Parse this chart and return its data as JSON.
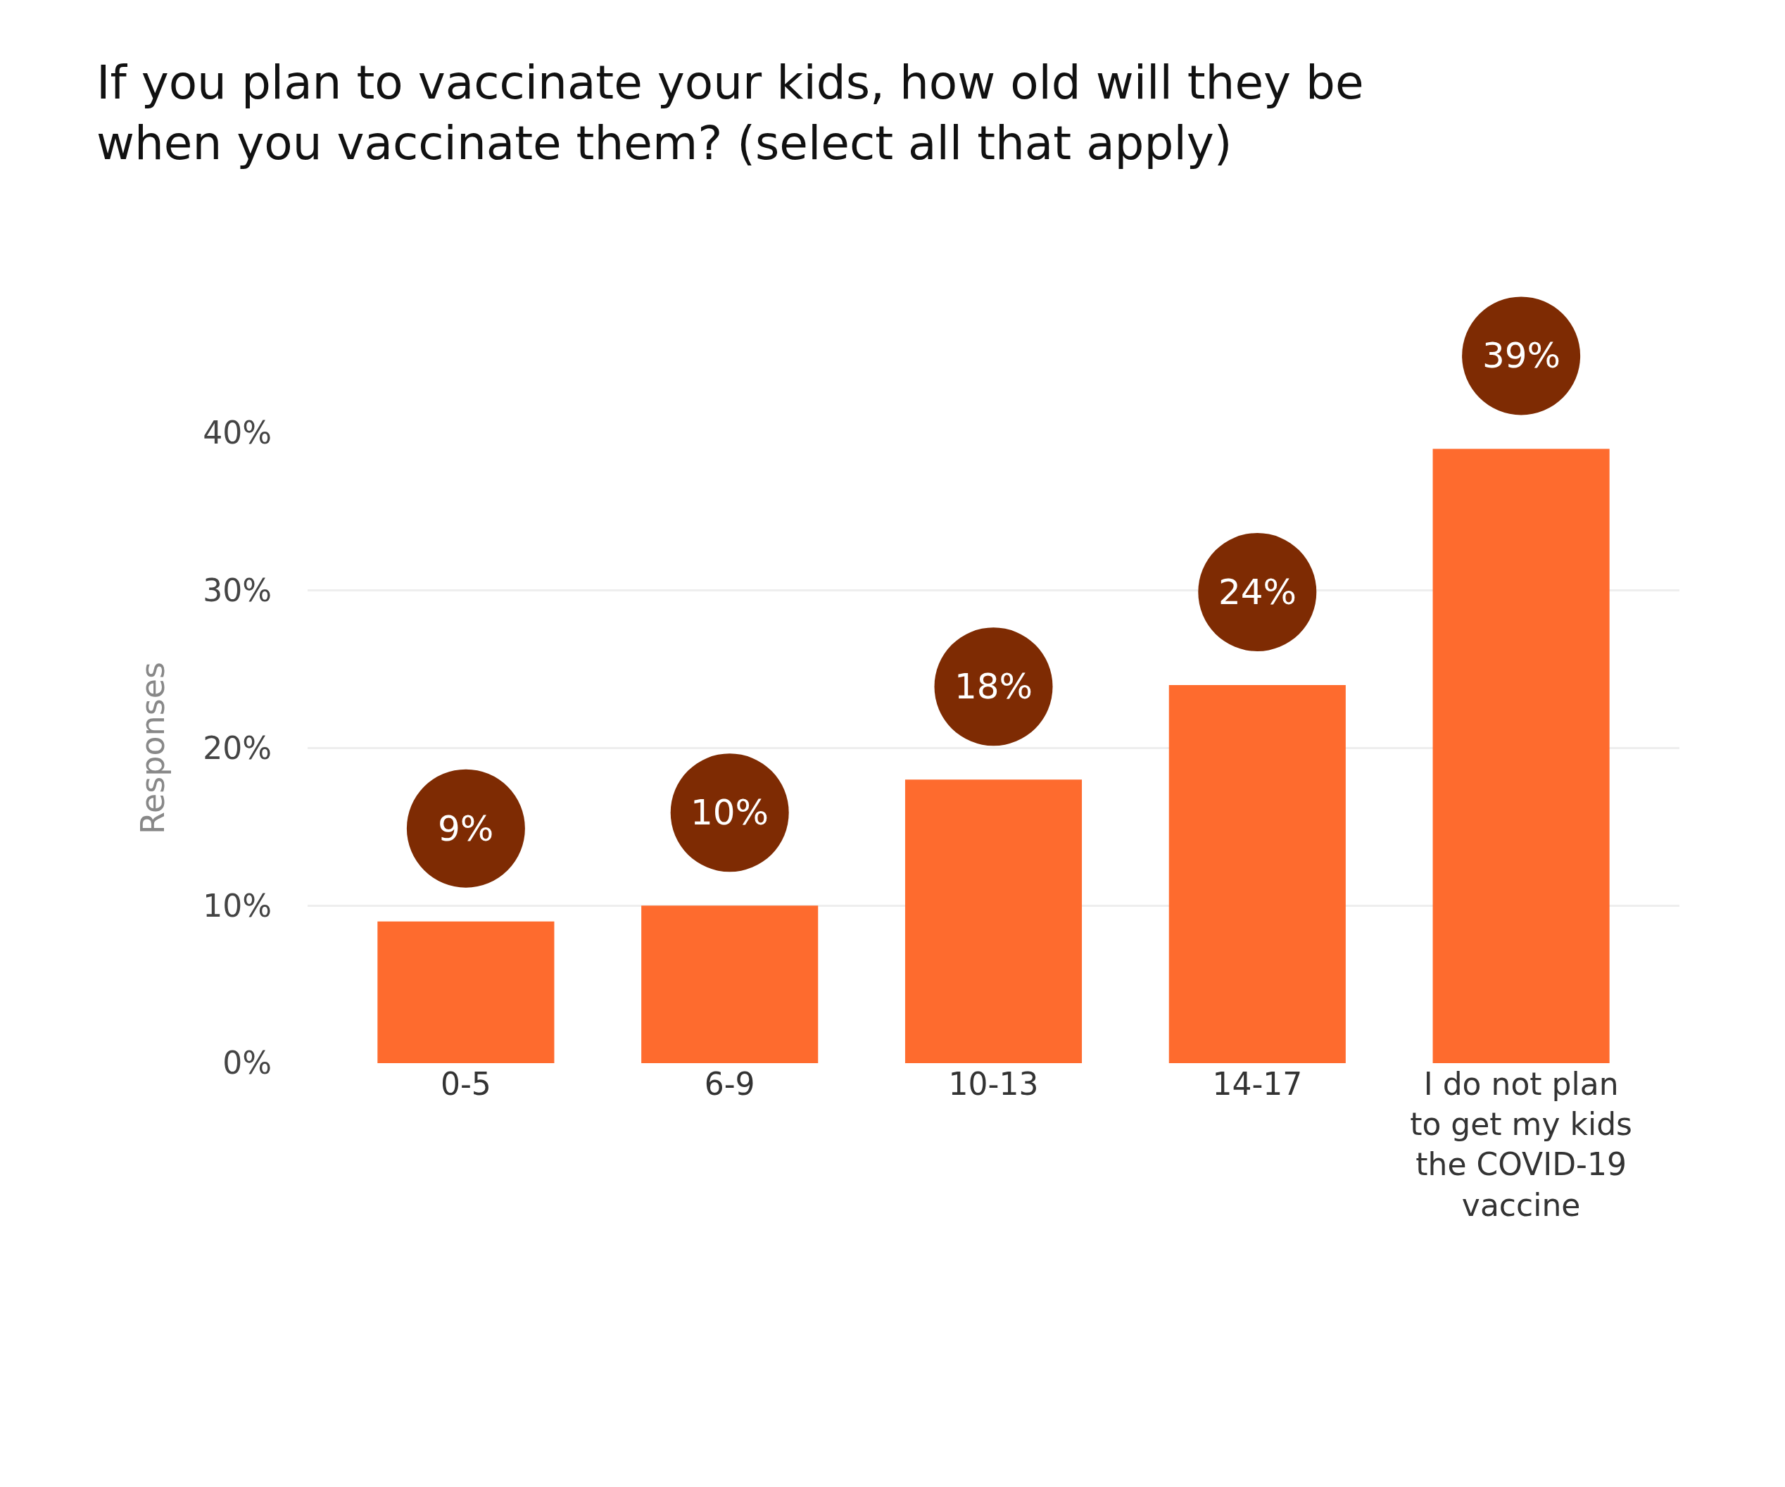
{
  "chart_data": {
    "type": "bar",
    "title": "If you plan to vaccinate your kids, how old will they be when you vaccinate them? (select all that apply)",
    "categories": [
      "0-5",
      "6-9",
      "10-13",
      "14-17",
      "I do not plan to get my kids the COVID-19 vaccine"
    ],
    "values": [
      9,
      10,
      18,
      24,
      39
    ],
    "color": "#fe6b2e",
    "ylabel": "Responses",
    "ylim": [
      0,
      40
    ],
    "yticks": [
      {
        "value": 0,
        "label": "0%"
      },
      {
        "value": 10,
        "label": "10%"
      },
      {
        "value": 20,
        "label": "20%"
      },
      {
        "value": 30,
        "label": "30%"
      },
      {
        "value": 40,
        "label": "40%"
      }
    ],
    "value_labels": [
      "9%",
      "10%",
      "18%",
      "24%",
      "39%"
    ],
    "grid": "y"
  }
}
